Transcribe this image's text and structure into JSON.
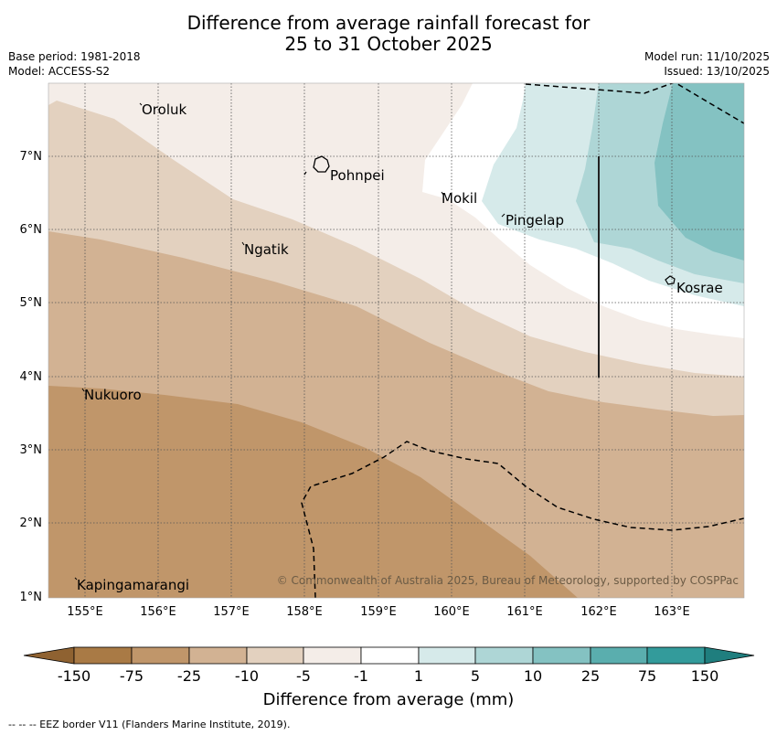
{
  "title": {
    "line1": "Difference from average rainfall forecast for",
    "line2": "25 to 31 October 2025"
  },
  "meta": {
    "base_period": "Base period: 1981-2018",
    "model": "Model: ACCESS-S2",
    "model_run": "Model run: 11/10/2025",
    "issued": "Issued: 13/10/2025"
  },
  "axes": {
    "lat_labels": [
      "7°N",
      "6°N",
      "5°N",
      "4°N",
      "3°N",
      "2°N",
      "1°N"
    ],
    "lon_labels": [
      "155°E",
      "156°E",
      "157°E",
      "158°E",
      "159°E",
      "160°E",
      "161°E",
      "162°E",
      "163°E"
    ]
  },
  "places": [
    "Oroluk",
    "Pohnpei",
    "Mokil",
    "Pingelap",
    "Ngatik",
    "Kosrae",
    "Nukuoro",
    "Kapingamarangi"
  ],
  "credit": "© Commonwealth of Australia 2025, Bureau of Meteorology, supported by COSPPac",
  "colorbar": {
    "ticks": [
      "-150",
      "-75",
      "-25",
      "-10",
      "-5",
      "-1",
      "1",
      "5",
      "10",
      "25",
      "75",
      "150"
    ],
    "colors": [
      "#a97a45",
      "#c0966a",
      "#d2b293",
      "#e3d1bf",
      "#f4ede8",
      "#ffffff",
      "#d6eaea",
      "#aed6d6",
      "#84c2c2",
      "#5aaeae",
      "#339b9b"
    ],
    "title": "Difference from average (mm)"
  },
  "footer": "--  --  -- EEZ border V11 (Flanders Marine Institute, 2019)."
}
